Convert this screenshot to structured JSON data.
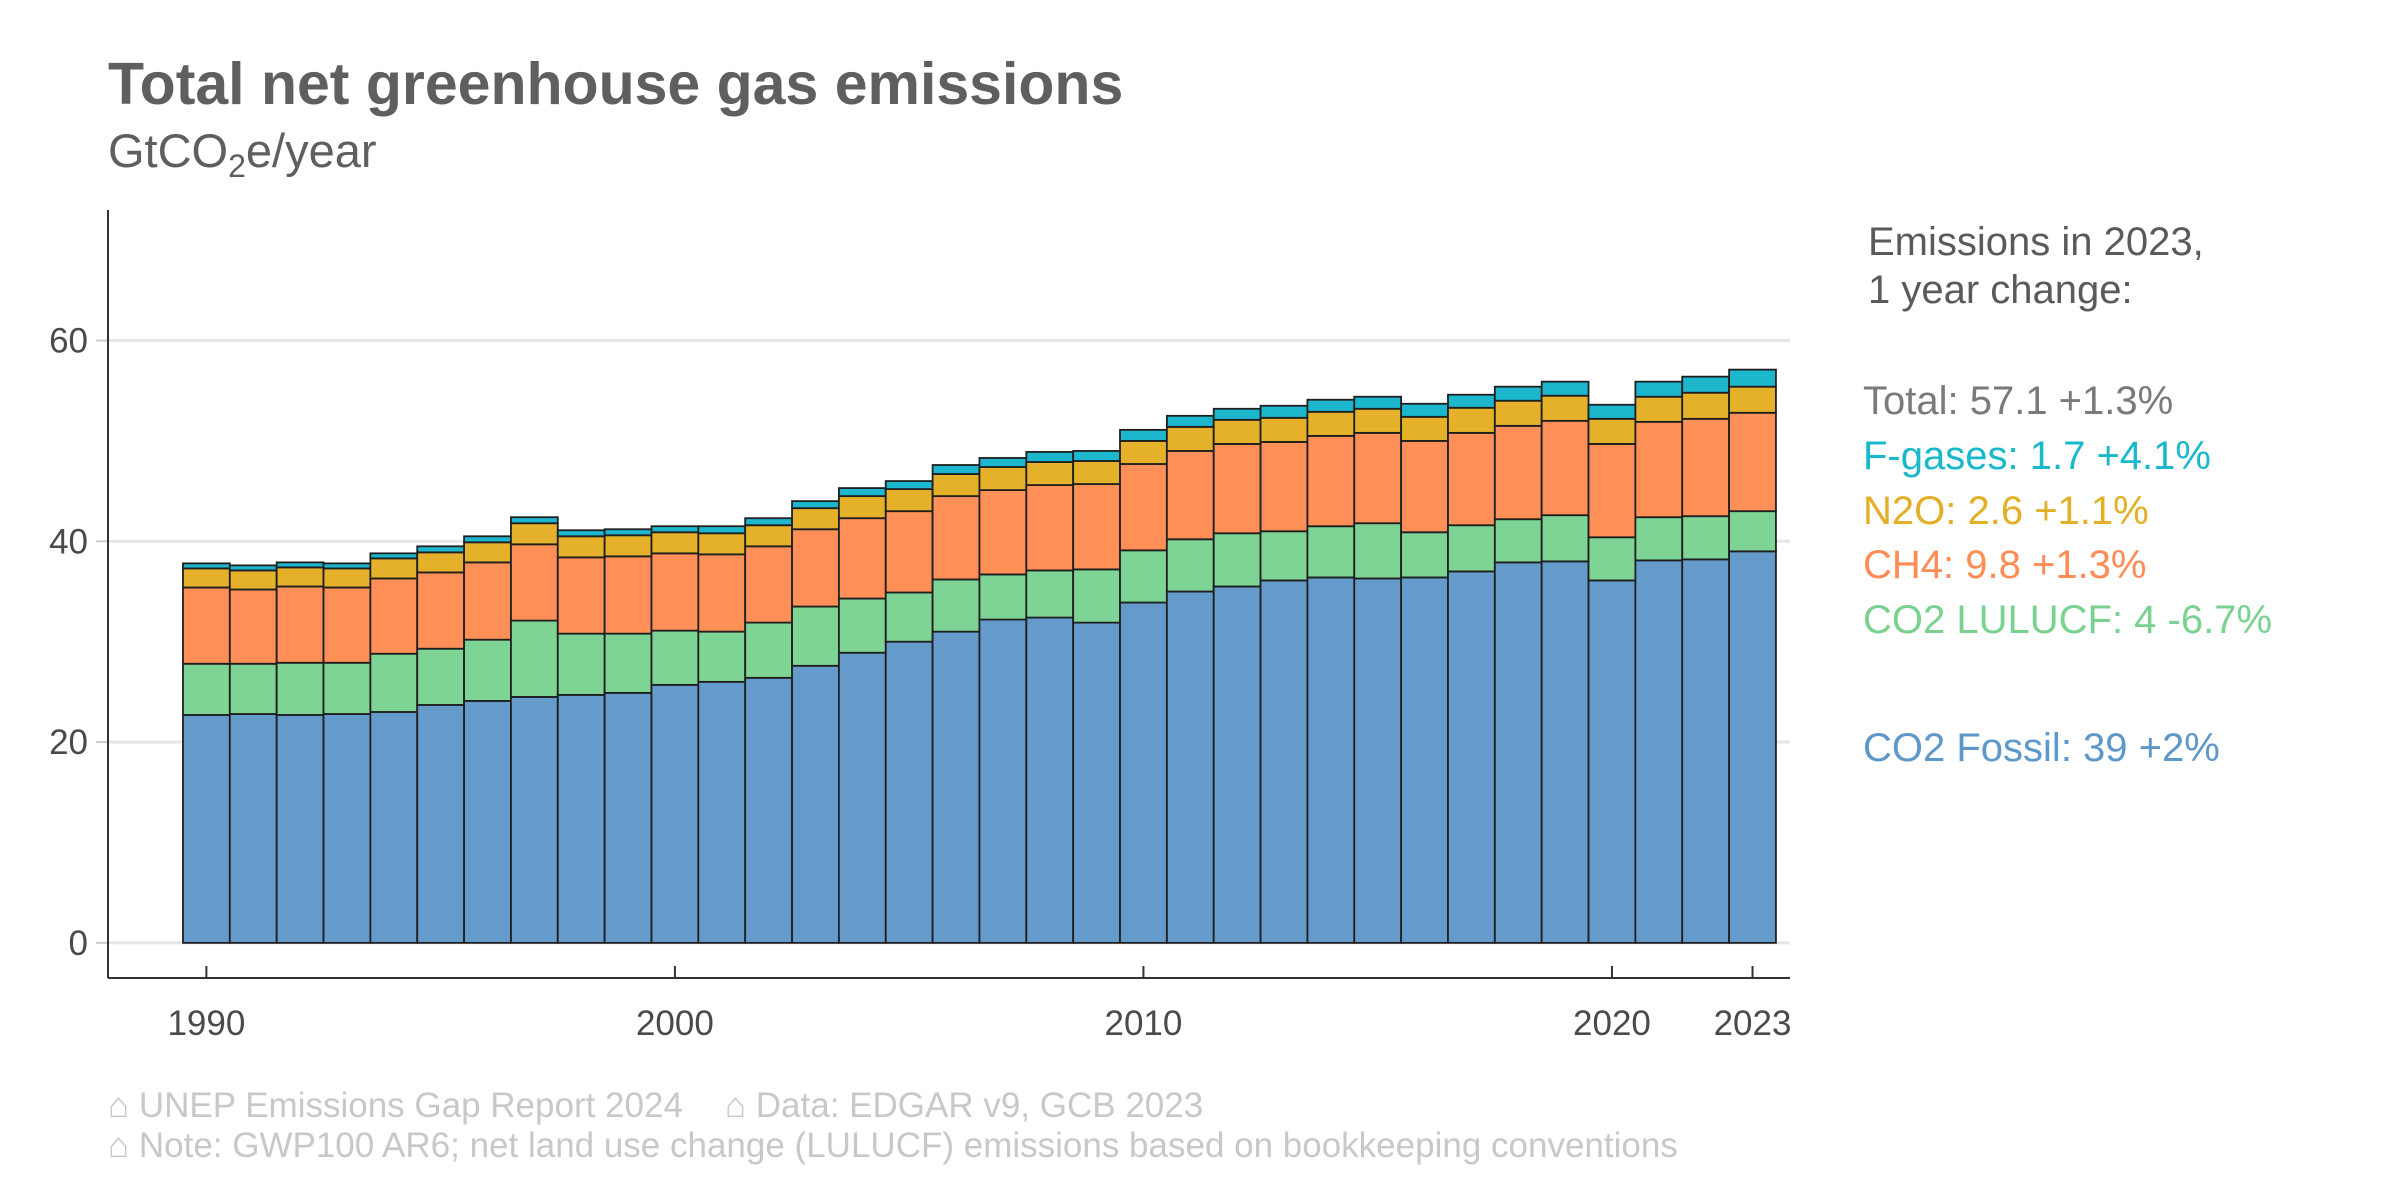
{
  "title": "Total net greenhouse gas emissions",
  "subtitle": {
    "prefix": "GtCO",
    "sub": "2",
    "suffix": "e/year"
  },
  "legend": {
    "title_line1": "Emissions in 2023,",
    "title_line2": "1 year change:",
    "entries": [
      {
        "key": "total",
        "text": "Total: 57.1 +1.3%",
        "color": "#7a7a7a"
      },
      {
        "key": "fgases",
        "text": "F-gases: 1.7 +4.1%",
        "color": "#1ab8cc"
      },
      {
        "key": "n2o",
        "text": "N2O: 2.6 +1.1%",
        "color": "#e3af24"
      },
      {
        "key": "ch4",
        "text": "CH4: 9.8 +1.3%",
        "color": "#ff8c55"
      },
      {
        "key": "lulucf",
        "text": "CO2 LULUCF: 4 -6.7%",
        "color": "#79d28f"
      },
      {
        "key": "fossil",
        "text": "CO2 Fossil: 39 +2%",
        "color": "#5e97c9"
      }
    ]
  },
  "footer": {
    "source": "⌂ UNEP Emissions Gap Report 2024",
    "data": "⌂ Data: EDGAR v9, GCB 2023",
    "note": "⌂ Note: GWP100 AR6; net land use change (LULUCF) emissions based on bookkeeping conventions"
  },
  "chart_data": {
    "type": "bar",
    "stacked": true,
    "ylim": [
      -3.5,
      73
    ],
    "xlim": [
      1987.9,
      2023.8
    ],
    "grid": true,
    "y_ticks": [
      0,
      20,
      40,
      60
    ],
    "x_ticks": [
      1990,
      2000,
      2010,
      2020,
      2023
    ],
    "x": [
      1990,
      1991,
      1992,
      1993,
      1994,
      1995,
      1996,
      1997,
      1998,
      1999,
      2000,
      2001,
      2002,
      2003,
      2004,
      2005,
      2006,
      2007,
      2008,
      2009,
      2010,
      2011,
      2012,
      2013,
      2014,
      2015,
      2016,
      2017,
      2018,
      2019,
      2020,
      2021,
      2022,
      2023
    ],
    "series": [
      {
        "key": "fossil",
        "name": "CO2 Fossil",
        "color": "#649bcb",
        "values": [
          22.7,
          22.8,
          22.7,
          22.8,
          23.0,
          23.7,
          24.1,
          24.5,
          24.7,
          24.9,
          25.7,
          26.0,
          26.4,
          27.6,
          28.9,
          30.0,
          31.0,
          32.2,
          32.4,
          31.9,
          33.9,
          35.0,
          35.5,
          36.1,
          36.4,
          36.3,
          36.4,
          37.0,
          37.9,
          38.0,
          36.1,
          38.1,
          38.2,
          39.0
        ]
      },
      {
        "key": "lulucf",
        "name": "CO2 LULUCF",
        "color": "#7ed494",
        "values": [
          5.1,
          5.0,
          5.2,
          5.1,
          5.8,
          5.6,
          6.1,
          7.6,
          6.1,
          5.9,
          5.4,
          5.0,
          5.5,
          5.9,
          5.4,
          4.9,
          5.2,
          4.5,
          4.7,
          5.3,
          5.2,
          5.2,
          5.3,
          4.9,
          5.1,
          5.5,
          4.5,
          4.6,
          4.3,
          4.6,
          4.3,
          4.3,
          4.3,
          4.0
        ]
      },
      {
        "key": "ch4",
        "name": "CH4",
        "color": "#fe8f56",
        "values": [
          7.6,
          7.4,
          7.6,
          7.5,
          7.5,
          7.6,
          7.7,
          7.6,
          7.6,
          7.7,
          7.7,
          7.7,
          7.6,
          7.7,
          8.0,
          8.1,
          8.3,
          8.4,
          8.5,
          8.5,
          8.6,
          8.8,
          8.9,
          8.9,
          9.0,
          9.0,
          9.1,
          9.2,
          9.3,
          9.4,
          9.3,
          9.5,
          9.7,
          9.8
        ]
      },
      {
        "key": "n2o",
        "name": "N2O",
        "color": "#e5b12a",
        "values": [
          1.9,
          1.9,
          1.9,
          1.9,
          2.0,
          2.0,
          2.0,
          2.1,
          2.1,
          2.1,
          2.1,
          2.1,
          2.1,
          2.1,
          2.2,
          2.2,
          2.2,
          2.3,
          2.3,
          2.3,
          2.3,
          2.4,
          2.4,
          2.4,
          2.4,
          2.4,
          2.4,
          2.5,
          2.5,
          2.5,
          2.5,
          2.5,
          2.6,
          2.6
        ]
      },
      {
        "key": "fgases",
        "name": "F-gases",
        "color": "#1cb6cd",
        "values": [
          0.5,
          0.5,
          0.5,
          0.5,
          0.5,
          0.6,
          0.6,
          0.6,
          0.6,
          0.6,
          0.6,
          0.7,
          0.7,
          0.7,
          0.8,
          0.8,
          0.9,
          0.9,
          1.0,
          1.0,
          1.1,
          1.1,
          1.1,
          1.2,
          1.2,
          1.2,
          1.3,
          1.3,
          1.4,
          1.4,
          1.4,
          1.5,
          1.6,
          1.7
        ]
      }
    ]
  }
}
